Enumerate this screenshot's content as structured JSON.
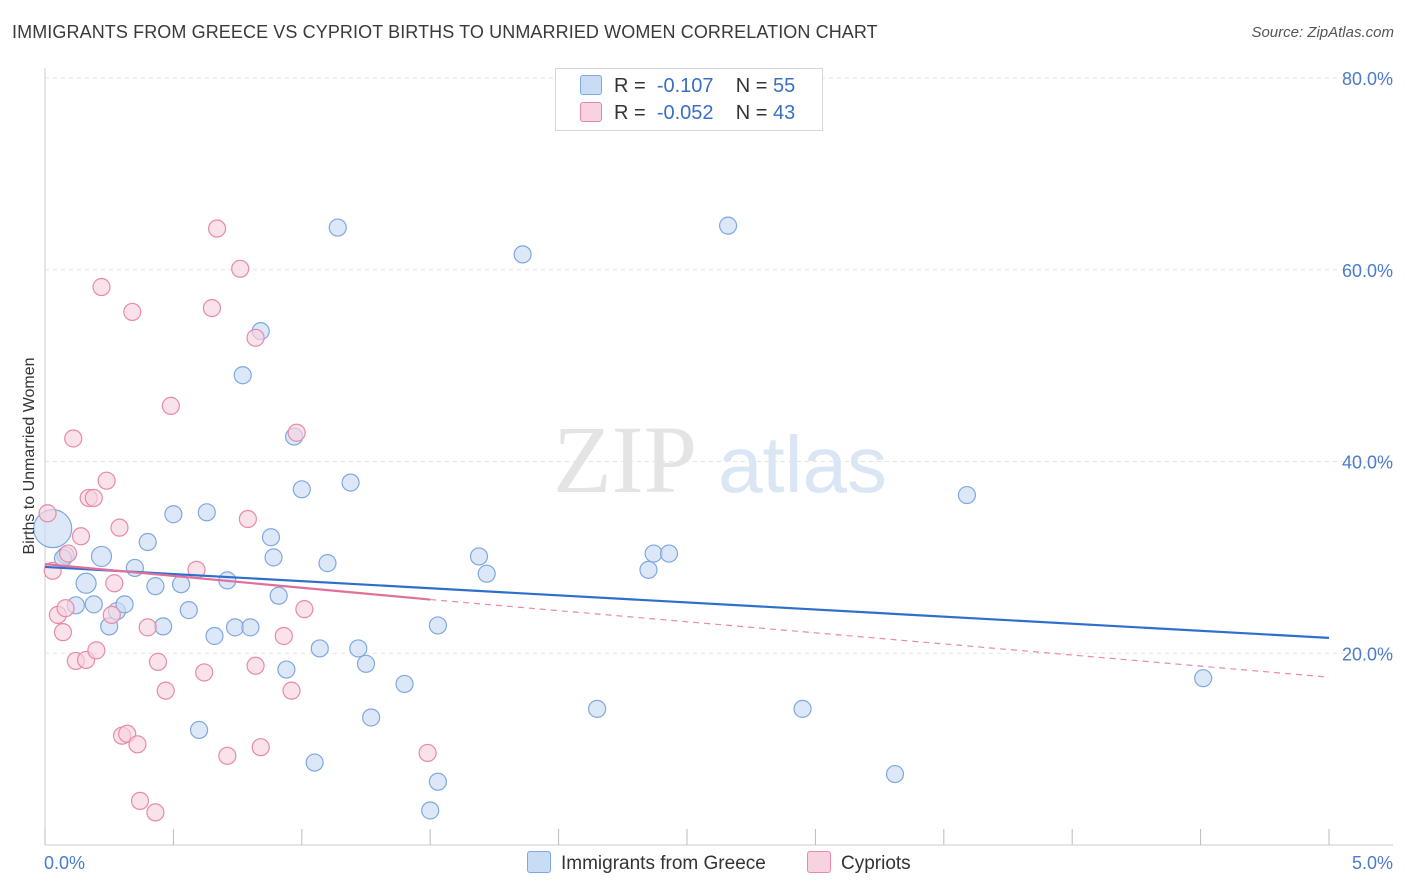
{
  "title": "IMMIGRANTS FROM GREECE VS CYPRIOT BIRTHS TO UNMARRIED WOMEN CORRELATION CHART",
  "source": "Source: ZipAtlas.com",
  "watermark": {
    "zip": "ZIP",
    "atlas": "atlas"
  },
  "legend": {
    "rows": [
      {
        "r_label": "R =",
        "r_value": "-0.107",
        "n_label": "N =",
        "n_value": "55",
        "color": "#a9c8ef"
      },
      {
        "r_label": "R =",
        "r_value": "-0.052",
        "n_label": "N =",
        "n_value": "43",
        "color": "#f5b8cb"
      }
    ]
  },
  "bottom_legend": [
    {
      "label": "Immigrants from Greece",
      "color": "#a9c8ef"
    },
    {
      "label": "Cypriots",
      "color": "#f5b8cb"
    }
  ],
  "chart_data": {
    "type": "scatter",
    "title": "IMMIGRANTS FROM GREECE VS CYPRIOT BIRTHS TO UNMARRIED WOMEN CORRELATION CHART",
    "xlabel": "",
    "ylabel": "Births to Unmarried Women",
    "xlim": [
      0,
      5
    ],
    "ylim": [
      0,
      80
    ],
    "x_tick_labels": [
      "0.0%",
      "5.0%"
    ],
    "y_ticks": [
      20,
      40,
      60,
      80
    ],
    "y_tick_labels": [
      "20.0%",
      "40.0%",
      "60.0%",
      "80.0%"
    ],
    "grid": true,
    "legend_position": "top-center",
    "series": [
      {
        "name": "Immigrants from Greece",
        "color": "#7fa8e0",
        "fill": "#c9dcf5",
        "trend": {
          "x": [
            0,
            5
          ],
          "y": [
            29.0,
            21.6
          ]
        },
        "points": [
          [
            0.03,
            33.0
          ],
          [
            0.08,
            30.2
          ],
          [
            0.12,
            25.0
          ],
          [
            0.16,
            27.3
          ],
          [
            0.19,
            25.1
          ],
          [
            0.22,
            30.1
          ],
          [
            0.25,
            22.8
          ],
          [
            0.28,
            24.4
          ],
          [
            0.31,
            25.1
          ],
          [
            0.35,
            28.9
          ],
          [
            0.4,
            31.6
          ],
          [
            0.43,
            27.0
          ],
          [
            0.46,
            22.8
          ],
          [
            0.5,
            34.5
          ],
          [
            0.53,
            27.2
          ],
          [
            0.56,
            24.5
          ],
          [
            0.6,
            12.0
          ],
          [
            0.63,
            34.7
          ],
          [
            0.66,
            21.8
          ],
          [
            0.71,
            27.6
          ],
          [
            0.74,
            22.7
          ],
          [
            0.77,
            49.0
          ],
          [
            0.8,
            22.7
          ],
          [
            0.84,
            53.6
          ],
          [
            0.88,
            32.1
          ],
          [
            0.91,
            26.0
          ],
          [
            0.94,
            18.3
          ],
          [
            0.97,
            42.6
          ],
          [
            1.0,
            37.1
          ],
          [
            1.05,
            8.6
          ],
          [
            1.07,
            20.5
          ],
          [
            1.1,
            29.4
          ],
          [
            1.14,
            64.4
          ],
          [
            1.19,
            37.8
          ],
          [
            1.22,
            20.5
          ],
          [
            1.25,
            18.9
          ],
          [
            1.27,
            13.3
          ],
          [
            1.4,
            16.8
          ],
          [
            1.5,
            3.6
          ],
          [
            1.53,
            6.6
          ],
          [
            1.53,
            22.9
          ],
          [
            1.69,
            30.1
          ],
          [
            1.72,
            28.3
          ],
          [
            1.86,
            61.6
          ],
          [
            2.15,
            14.2
          ],
          [
            2.35,
            28.7
          ],
          [
            2.37,
            30.4
          ],
          [
            2.43,
            30.4
          ],
          [
            2.66,
            64.6
          ],
          [
            2.95,
            14.2
          ],
          [
            3.31,
            7.4
          ],
          [
            3.59,
            36.5
          ],
          [
            4.51,
            17.4
          ],
          [
            0.89,
            30.0
          ],
          [
            0.07,
            29.9
          ]
        ]
      },
      {
        "name": "Cypriots",
        "color": "#e88aa8",
        "fill": "#f8d2de",
        "trend": {
          "x": [
            0,
            1.5
          ],
          "y": [
            29.3,
            25.6
          ]
        },
        "trend_extension": {
          "x": [
            1.5,
            5
          ],
          "y": [
            25.6,
            17.5
          ]
        },
        "points": [
          [
            0.01,
            34.6
          ],
          [
            0.03,
            28.6
          ],
          [
            0.05,
            24.0
          ],
          [
            0.07,
            22.2
          ],
          [
            0.08,
            24.7
          ],
          [
            0.09,
            30.4
          ],
          [
            0.11,
            42.4
          ],
          [
            0.12,
            19.2
          ],
          [
            0.14,
            32.2
          ],
          [
            0.16,
            19.3
          ],
          [
            0.17,
            36.2
          ],
          [
            0.19,
            36.2
          ],
          [
            0.2,
            20.3
          ],
          [
            0.22,
            58.2
          ],
          [
            0.24,
            38.0
          ],
          [
            0.26,
            24.0
          ],
          [
            0.27,
            27.3
          ],
          [
            0.29,
            33.1
          ],
          [
            0.3,
            11.4
          ],
          [
            0.32,
            11.6
          ],
          [
            0.34,
            55.6
          ],
          [
            0.36,
            10.5
          ],
          [
            0.37,
            4.6
          ],
          [
            0.4,
            22.7
          ],
          [
            0.43,
            3.4
          ],
          [
            0.44,
            19.1
          ],
          [
            0.47,
            16.1
          ],
          [
            0.49,
            45.8
          ],
          [
            0.59,
            28.7
          ],
          [
            0.62,
            18.0
          ],
          [
            0.65,
            56.0
          ],
          [
            0.67,
            64.3
          ],
          [
            0.71,
            9.3
          ],
          [
            0.76,
            60.1
          ],
          [
            0.79,
            34.0
          ],
          [
            0.82,
            52.9
          ],
          [
            0.82,
            18.7
          ],
          [
            0.84,
            10.2
          ],
          [
            0.93,
            21.8
          ],
          [
            0.96,
            16.1
          ],
          [
            0.98,
            43.0
          ],
          [
            1.01,
            24.6
          ],
          [
            1.49,
            9.6
          ]
        ]
      }
    ]
  }
}
